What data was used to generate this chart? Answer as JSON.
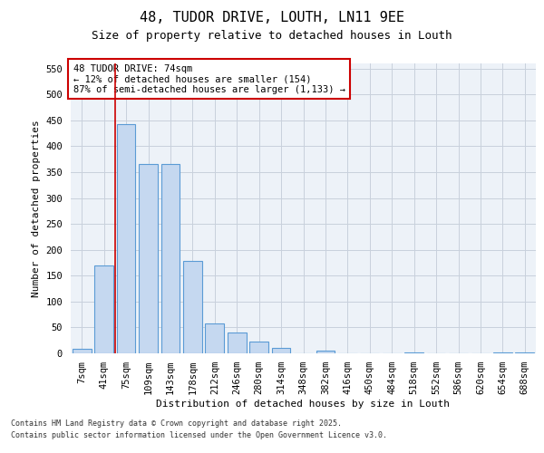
{
  "title1": "48, TUDOR DRIVE, LOUTH, LN11 9EE",
  "title2": "Size of property relative to detached houses in Louth",
  "xlabel": "Distribution of detached houses by size in Louth",
  "ylabel": "Number of detached properties",
  "categories": [
    "7sqm",
    "41sqm",
    "75sqm",
    "109sqm",
    "143sqm",
    "178sqm",
    "212sqm",
    "246sqm",
    "280sqm",
    "314sqm",
    "348sqm",
    "382sqm",
    "416sqm",
    "450sqm",
    "484sqm",
    "518sqm",
    "552sqm",
    "586sqm",
    "620sqm",
    "654sqm",
    "688sqm"
  ],
  "values": [
    8,
    170,
    443,
    365,
    365,
    178,
    57,
    40,
    22,
    10,
    0,
    5,
    0,
    0,
    0,
    2,
    0,
    0,
    0,
    2,
    2
  ],
  "bar_color": "#c5d8f0",
  "bar_edge_color": "#5b9bd5",
  "vline_x": 1.5,
  "vline_color": "#cc0000",
  "marker_label1": "48 TUDOR DRIVE: 74sqm",
  "marker_label2": "← 12% of detached houses are smaller (154)",
  "marker_label3": "87% of semi-detached houses are larger (1,133) →",
  "annotation_box_edgecolor": "#cc0000",
  "ylim": [
    0,
    560
  ],
  "yticks": [
    0,
    50,
    100,
    150,
    200,
    250,
    300,
    350,
    400,
    450,
    500,
    550
  ],
  "footer1": "Contains HM Land Registry data © Crown copyright and database right 2025.",
  "footer2": "Contains public sector information licensed under the Open Government Licence v3.0.",
  "bg_color": "#edf2f8",
  "grid_color": "#c8d0dc",
  "title1_fontsize": 11,
  "title2_fontsize": 9,
  "axis_label_fontsize": 8,
  "tick_fontsize": 7.5,
  "annotation_fontsize": 7.5,
  "footer_fontsize": 6
}
